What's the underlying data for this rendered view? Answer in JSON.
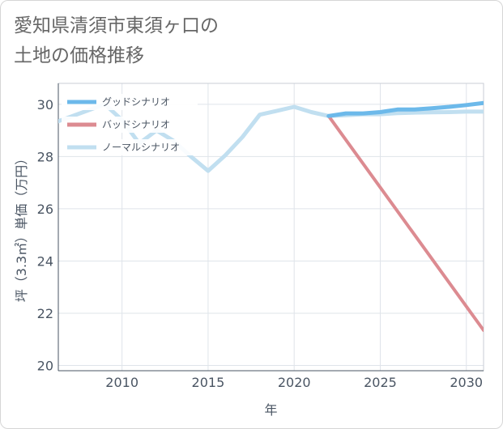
{
  "chart_data": {
    "type": "line",
    "title_lines": [
      "愛知県清須市東須ヶ口の",
      "土地の価格推移"
    ],
    "xlabel": "年",
    "ylabel": "坪（3.3㎡）単価（万円）",
    "xlim": [
      2006.3,
      2031
    ],
    "ylim": [
      19.8,
      30.8
    ],
    "xticks": [
      2010,
      2015,
      2020,
      2025,
      2030
    ],
    "yticks": [
      20,
      22,
      24,
      26,
      28,
      30
    ],
    "series": [
      {
        "name": "グッドシナリオ",
        "color": "#6cb9ea",
        "width": 5,
        "x": [
          2022,
          2023,
          2024,
          2025,
          2026,
          2027,
          2028,
          2029,
          2030,
          2031
        ],
        "y": [
          29.55,
          29.65,
          29.65,
          29.7,
          29.8,
          29.8,
          29.85,
          29.9,
          29.97,
          30.05
        ]
      },
      {
        "name": "バッドシナリオ",
        "color": "#dc8b91",
        "width": 4,
        "x": [
          2022,
          2031
        ],
        "y": [
          29.55,
          21.35
        ]
      },
      {
        "name": "ノーマルシナリオ",
        "color": "#c1dff0",
        "width": 5,
        "x": [
          2006.3,
          2009,
          2010,
          2011,
          2012,
          2013,
          2014,
          2015,
          2016,
          2017,
          2018,
          2019,
          2020,
          2021,
          2022,
          2023,
          2024,
          2025,
          2026,
          2027,
          2028,
          2029,
          2030,
          2031
        ],
        "y": [
          29.35,
          30.0,
          29.4,
          28.5,
          29.0,
          28.6,
          28.0,
          27.45,
          28.05,
          28.75,
          29.6,
          29.75,
          29.9,
          29.7,
          29.55,
          29.58,
          29.62,
          29.62,
          29.66,
          29.68,
          29.69,
          29.7,
          29.72,
          29.72
        ]
      }
    ]
  }
}
